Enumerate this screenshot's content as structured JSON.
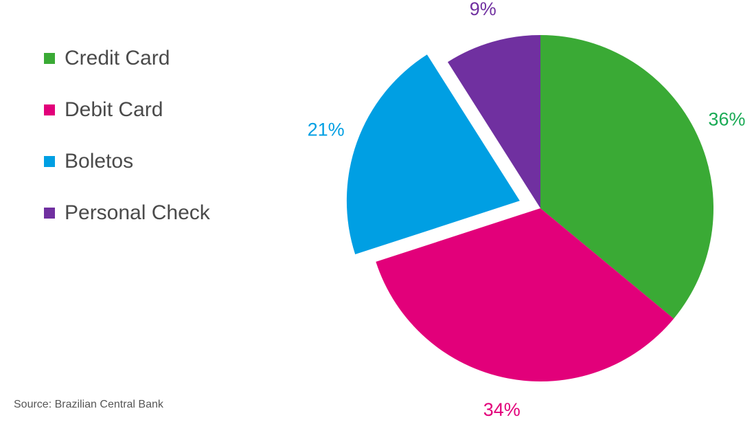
{
  "chart_data": {
    "type": "pie",
    "title": "",
    "slices": [
      {
        "label": "Credit Card",
        "value": 36,
        "value_label": "36%",
        "color": "#3aaa35",
        "exploded": false
      },
      {
        "label": "Debit Card",
        "value": 34,
        "value_label": "34%",
        "color": "#e2007a",
        "exploded": false
      },
      {
        "label": "Boletos",
        "value": 21,
        "value_label": "21%",
        "color": "#009fe3",
        "exploded": true
      },
      {
        "label": "Personal Check",
        "value": 9,
        "value_label": "9%",
        "color": "#7030a0",
        "exploded": false
      }
    ],
    "label_colors": [
      "#1aaa55",
      "#e2007a",
      "#009fe3",
      "#7030a0"
    ],
    "legend_position": "left"
  },
  "source": "Source: Brazilian Central Bank"
}
